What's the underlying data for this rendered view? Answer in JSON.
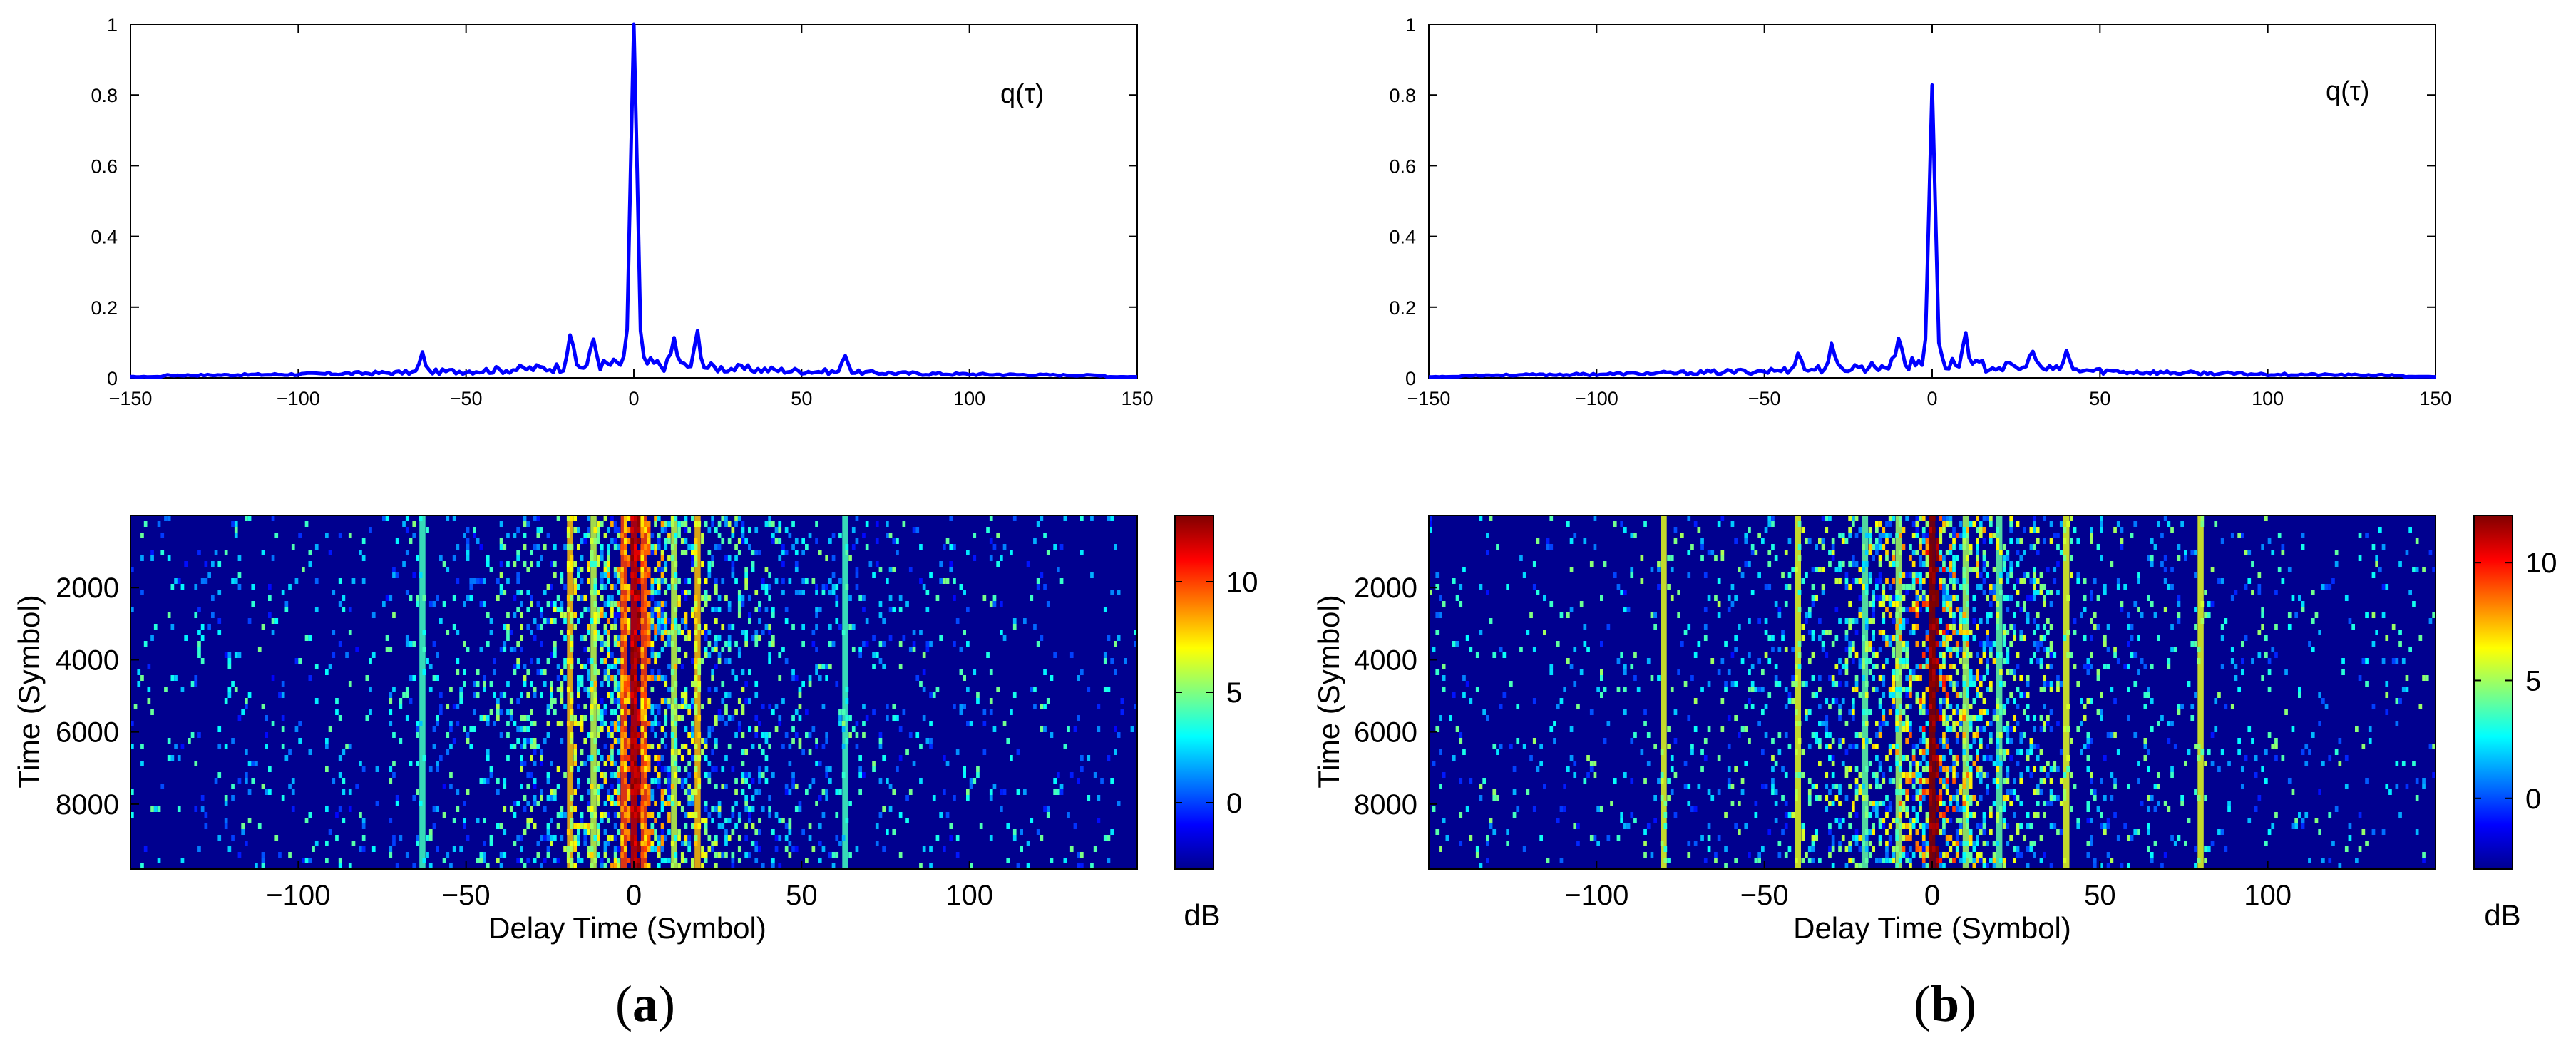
{
  "chart_data": [
    {
      "panel": "a",
      "type": "line",
      "legend": "q(τ)",
      "legend_position": "top-right",
      "xlim": [
        -150,
        150
      ],
      "ylim": [
        0,
        1
      ],
      "xticks": [
        -150,
        -100,
        -50,
        0,
        50,
        100,
        150
      ],
      "yticks": [
        0,
        0.2,
        0.4,
        0.6,
        0.8,
        1
      ],
      "peak": {
        "x": 0,
        "y": 1.0
      },
      "side_peaks": [
        {
          "x": -19,
          "y": 0.13
        },
        {
          "x": -12,
          "y": 0.1
        },
        {
          "x": 12,
          "y": 0.1
        },
        {
          "x": 19,
          "y": 0.13
        },
        {
          "x": -63,
          "y": 0.07
        },
        {
          "x": 63,
          "y": 0.07
        }
      ],
      "series_color": "#0000ff"
    },
    {
      "panel": "a",
      "type": "heatmap",
      "xlabel": "Delay Time (Symbol)",
      "ylabel": "Time (Symbol)",
      "xlim": [
        -150,
        150
      ],
      "ylim": [
        0,
        9800
      ],
      "xticks": [
        -100,
        -50,
        0,
        50,
        100
      ],
      "yticks": [
        2000,
        4000,
        6000,
        8000
      ],
      "colorbar": {
        "label": "dB",
        "range": [
          -3,
          13
        ],
        "ticks": [
          0,
          5,
          10
        ]
      },
      "strong_columns": [
        {
          "x": 0,
          "level_db": 12
        },
        {
          "x": -3,
          "level_db": 10
        },
        {
          "x": 3,
          "level_db": 10
        },
        {
          "x": -19,
          "level_db": 8
        },
        {
          "x": 19,
          "level_db": 8
        },
        {
          "x": -12,
          "level_db": 6
        },
        {
          "x": 12,
          "level_db": 6
        },
        {
          "x": -63,
          "level_db": 4
        },
        {
          "x": 63,
          "level_db": 4
        }
      ]
    },
    {
      "panel": "b",
      "type": "line",
      "legend": "q(τ)",
      "legend_position": "top-right",
      "xlim": [
        -150,
        150
      ],
      "ylim": [
        0,
        1
      ],
      "xticks": [
        -150,
        -100,
        -50,
        0,
        50,
        100,
        150
      ],
      "yticks": [
        0,
        0.2,
        0.4,
        0.6,
        0.8,
        1
      ],
      "peak": {
        "x": 0,
        "y": 0.8
      },
      "side_peaks": [
        {
          "x": -10,
          "y": 0.12
        },
        {
          "x": 10,
          "y": 0.12
        },
        {
          "x": -30,
          "y": 0.08
        },
        {
          "x": 30,
          "y": 0.08
        },
        {
          "x": -40,
          "y": 0.07
        },
        {
          "x": 40,
          "y": 0.07
        }
      ],
      "series_color": "#0000ff"
    },
    {
      "panel": "b",
      "type": "heatmap",
      "xlabel": "Delay Time (Symbol)",
      "ylabel": "Time (Symbol)",
      "xlim": [
        -150,
        150
      ],
      "ylim": [
        0,
        9800
      ],
      "xticks": [
        -100,
        -50,
        0,
        50,
        100
      ],
      "yticks": [
        2000,
        4000,
        6000,
        8000
      ],
      "colorbar": {
        "label": "dB",
        "range": [
          -3,
          12
        ],
        "ticks": [
          0,
          5,
          10
        ]
      },
      "strong_columns": [
        {
          "x": 0,
          "level_db": 12
        },
        {
          "x": -80,
          "level_db": 6
        },
        {
          "x": 80,
          "level_db": 6
        },
        {
          "x": -40,
          "level_db": 6
        },
        {
          "x": 40,
          "level_db": 6
        },
        {
          "x": -10,
          "level_db": 5
        },
        {
          "x": 10,
          "level_db": 5
        },
        {
          "x": -20,
          "level_db": 4
        },
        {
          "x": 20,
          "level_db": 4
        }
      ]
    }
  ],
  "panel_labels": [
    "(a)",
    "(b)"
  ],
  "panel_letters": [
    "a",
    "b"
  ],
  "colors": {
    "line": "#0000ff",
    "heatmap_background": "#00008f"
  }
}
